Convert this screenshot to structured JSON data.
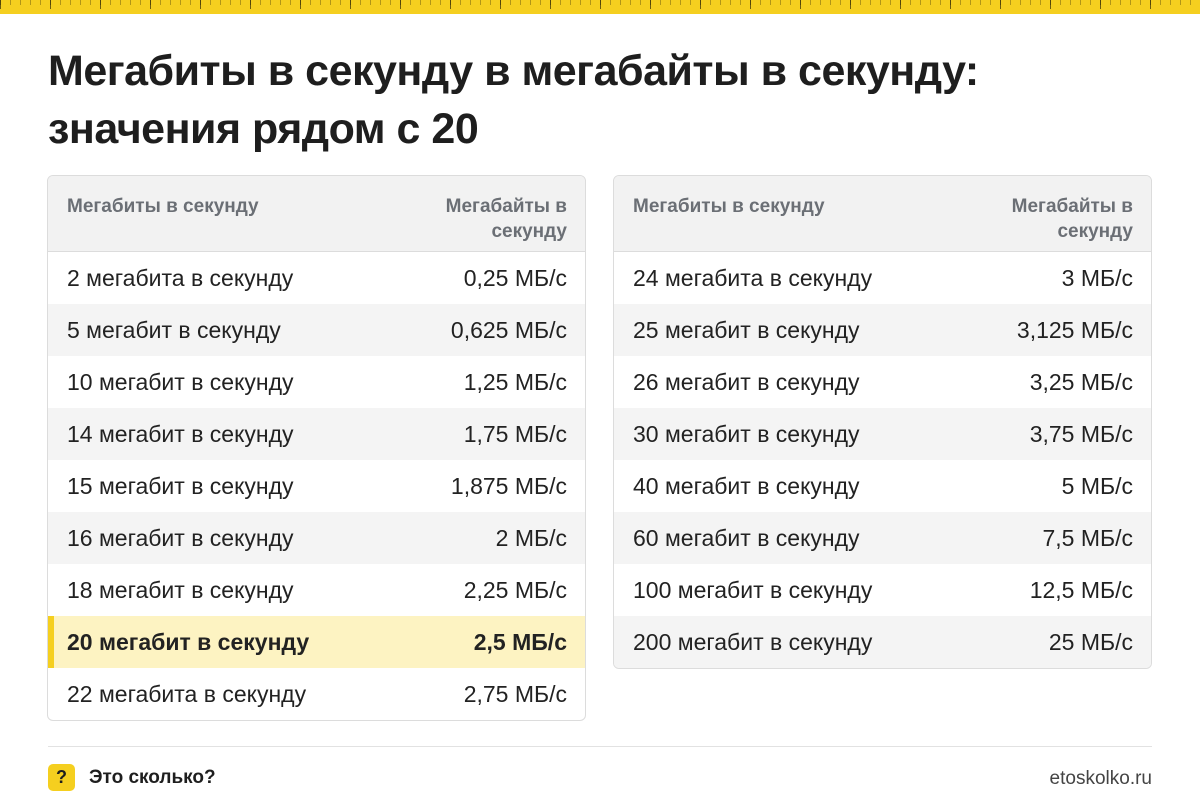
{
  "title": "Мегабиты в секунду в мегабайты в секунду: значения рядом с 20",
  "headers": {
    "mbit": "Мегабиты в секунду",
    "mbyte": "Мегабайты в секунду"
  },
  "left_rows": [
    {
      "label": "2 мегабита в секунду",
      "value": "0,25 МБ/с"
    },
    {
      "label": "5 мегабит в секунду",
      "value": "0,625 МБ/с"
    },
    {
      "label": "10 мегабит в секунду",
      "value": "1,25 МБ/с"
    },
    {
      "label": "14 мегабит в секунду",
      "value": "1,75 МБ/с"
    },
    {
      "label": "15 мегабит в секунду",
      "value": "1,875 МБ/с"
    },
    {
      "label": "16 мегабит в секунду",
      "value": "2 МБ/с"
    },
    {
      "label": "18 мегабит в секунду",
      "value": "2,25 МБ/с"
    },
    {
      "label": "20 мегабит в секунду",
      "value": "2,5 МБ/с"
    },
    {
      "label": "22 мегабита в секунду",
      "value": "2,75 МБ/с"
    }
  ],
  "right_rows": [
    {
      "label": "24 мегабита в секунду",
      "value": "3 МБ/с"
    },
    {
      "label": "25 мегабит в секунду",
      "value": "3,125 МБ/с"
    },
    {
      "label": "26 мегабит в секунду",
      "value": "3,25 МБ/с"
    },
    {
      "label": "30 мегабит в секунду",
      "value": "3,75 МБ/с"
    },
    {
      "label": "40 мегабит в секунду",
      "value": "5 МБ/с"
    },
    {
      "label": "60 мегабит в секунду",
      "value": "7,5 МБ/с"
    },
    {
      "label": "100 мегабит в секунду",
      "value": "12,5 МБ/с"
    },
    {
      "label": "200 мегабит в секунду",
      "value": "25 МБ/с"
    }
  ],
  "highlight": {
    "table": "left",
    "row": 7
  },
  "footer": {
    "logo_symbol": "?",
    "brand": "Это сколько?",
    "site": "etoskolko.ru"
  },
  "colors": {
    "accent": "#f5cf1f",
    "highlight_row": "#fdf3c2",
    "header_bg": "#f2f2f2",
    "header_text": "#6b6f75"
  }
}
